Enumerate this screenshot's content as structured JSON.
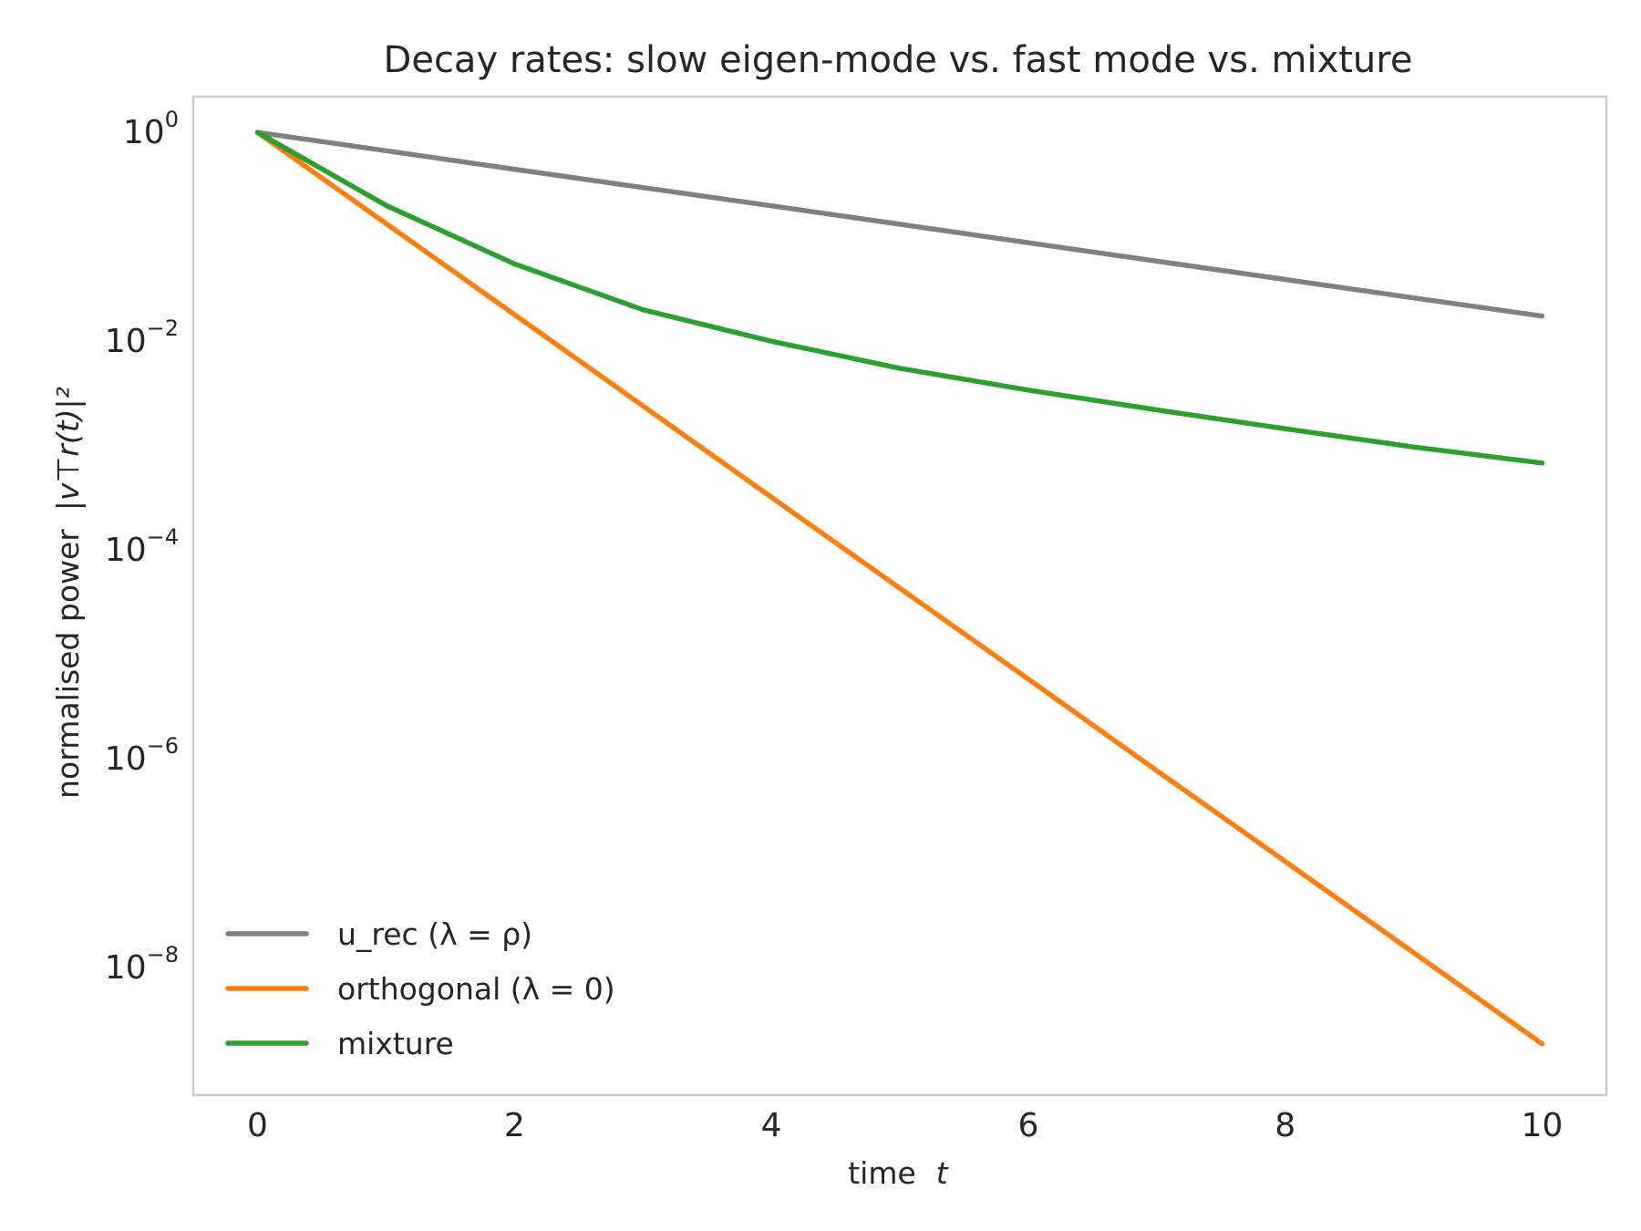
{
  "chart_data": {
    "type": "line",
    "title": "Decay rates: slow eigen-mode vs. fast mode vs. mixture",
    "xlabel": "time",
    "xlabel_symbol": "t",
    "ylabel": "normalised power",
    "ylabel_math": "|v⊤r(t)|²",
    "yscale": "log",
    "xlim": [
      -0.5,
      10.5
    ],
    "ylim": [
      6e-10,
      2.2
    ],
    "xticks": [
      0,
      2,
      4,
      6,
      8,
      10
    ],
    "yticks": [
      {
        "value": 1,
        "base": "10",
        "exp": "0"
      },
      {
        "value": 0.01,
        "base": "10",
        "exp": "−2"
      },
      {
        "value": 0.0001,
        "base": "10",
        "exp": "−4"
      },
      {
        "value": 1e-06,
        "base": "10",
        "exp": "−6"
      },
      {
        "value": 1e-08,
        "base": "10",
        "exp": "−8"
      }
    ],
    "grid": false,
    "legend_position": "lower-left",
    "x": [
      0,
      1,
      2,
      3,
      4,
      5,
      6,
      7,
      8,
      9,
      10
    ],
    "series": [
      {
        "name": "u_rec  (λ = ρ)",
        "color": "#808080",
        "values": [
          1,
          0.667,
          0.444,
          0.296,
          0.198,
          0.132,
          0.0878,
          0.0585,
          0.039,
          0.026,
          0.0174
        ]
      },
      {
        "name": "orthogonal (λ = 0)",
        "color": "#ff7f0e",
        "values": [
          1,
          0.134,
          0.018,
          0.0024,
          0.00032,
          4.3e-05,
          5.8e-06,
          7.7e-07,
          1.04e-07,
          1.39e-08,
          1.86e-09
        ]
      },
      {
        "name": "mixture",
        "color": "#2ca02c",
        "values": [
          1,
          0.2,
          0.055,
          0.02,
          0.01,
          0.0055,
          0.0034,
          0.0022,
          0.00145,
          0.00097,
          0.00068
        ]
      }
    ]
  }
}
